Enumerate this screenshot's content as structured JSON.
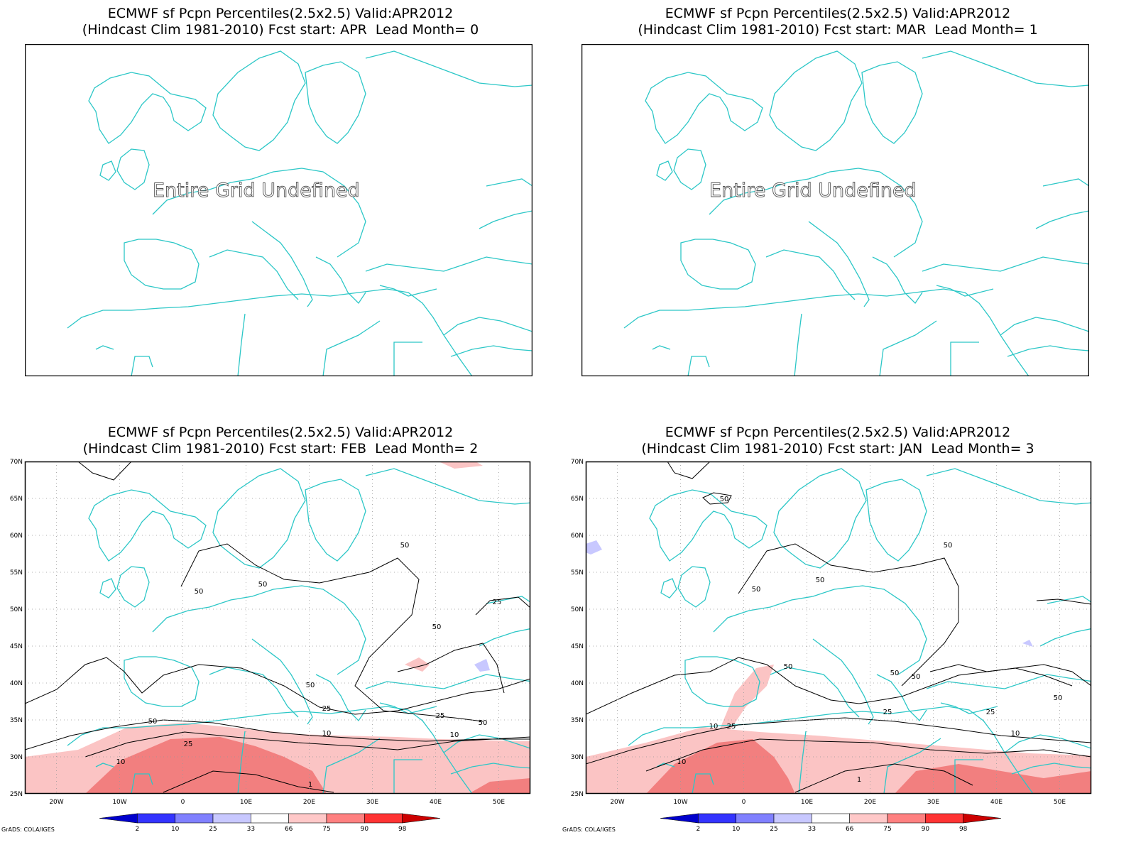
{
  "panels": [
    {
      "id": "p1",
      "title_line1": "ECMWF sf Pcpn Percentiles(2.5x2.5) Valid:APR2012",
      "title_line2": "(Hindcast Clim 1981-2010) Fcst start: APR  Lead Month= 0",
      "message": "Entire Grid Undefined",
      "has_data": false
    },
    {
      "id": "p2",
      "title_line1": "ECMWF sf Pcpn Percentiles(2.5x2.5) Valid:APR2012",
      "title_line2": "(Hindcast Clim 1981-2010) Fcst start: MAR  Lead Month= 1",
      "message": "Entire Grid Undefined",
      "has_data": false
    },
    {
      "id": "p3",
      "title_line1": "ECMWF sf Pcpn Percentiles(2.5x2.5) Valid:APR2012",
      "title_line2": "(Hindcast Clim 1981-2010) Fcst start: FEB  Lead Month= 2",
      "has_data": true,
      "contour_labels": [
        "50",
        "50",
        "50",
        "50",
        "50",
        "25",
        "25",
        "25",
        "10",
        "10",
        "10",
        "50",
        "1",
        "25",
        "50"
      ]
    },
    {
      "id": "p4",
      "title_line1": "ECMWF sf Pcpn Percentiles(2.5x2.5) Valid:APR2012",
      "title_line2": "(Hindcast Clim 1981-2010) Fcst start: JAN  Lead Month= 3",
      "has_data": true,
      "contour_labels": [
        "50",
        "50",
        "50",
        "50",
        "50",
        "50",
        "50",
        "25",
        "25",
        "25",
        "10",
        "10",
        "10",
        "50",
        "1"
      ]
    }
  ],
  "axes": {
    "lat_labels": [
      "70N",
      "65N",
      "60N",
      "55N",
      "50N",
      "45N",
      "40N",
      "35N",
      "30N",
      "25N"
    ],
    "lon_labels": [
      "20W",
      "10W",
      "0",
      "10E",
      "20E",
      "30E",
      "40E",
      "50E"
    ]
  },
  "legend": {
    "breaks": [
      "2",
      "10",
      "25",
      "33",
      "66",
      "75",
      "90",
      "98"
    ],
    "colors": [
      "#0000cc",
      "#3333ff",
      "#8080ff",
      "#c8c8ff",
      "#ffffff",
      "#ffc8c8",
      "#ff8080",
      "#ff3333",
      "#cc0000"
    ]
  },
  "credit": "GrADS: COLA/IGES",
  "colors": {
    "coast": "#2cc7c7",
    "contour": "#000000",
    "shade_75": "#fbc4c4",
    "shade_90": "#f27f7f",
    "shade_low": "#c8c8ff"
  }
}
